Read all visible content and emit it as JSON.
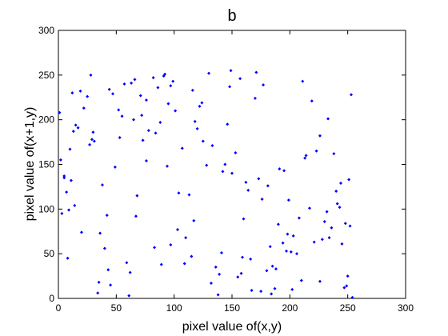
{
  "chart_data": {
    "type": "scatter",
    "title": "b",
    "xlabel": "pixel value of(x,y)",
    "ylabel": "pixel value of(x+1,y)",
    "xlim": [
      0,
      300
    ],
    "ylim": [
      0,
      300
    ],
    "xticks": [
      0,
      50,
      100,
      150,
      200,
      250,
      300
    ],
    "yticks": [
      0,
      50,
      100,
      150,
      200,
      250,
      300
    ],
    "color": "#0000ff",
    "x": [
      12,
      45,
      78,
      103,
      150,
      201,
      233,
      9,
      66,
      188,
      240,
      31,
      97,
      122,
      175,
      214,
      3,
      57,
      139,
      251,
      84,
      166,
      28,
      199,
      110,
      72,
      226,
      144,
      19,
      252,
      61,
      133,
      181,
      40,
      95,
      208,
      157,
      5,
      247,
      118,
      36,
      170,
      89,
      223,
      14,
      130,
      62,
      195,
      245,
      101,
      53,
      184,
      7,
      148,
      230,
      76,
      115,
      25,
      162,
      210,
      42,
      91,
      238,
      136,
      17,
      203,
      68,
      177,
      254,
      125,
      83,
      1,
      190,
      49,
      155,
      219,
      107,
      34,
      243,
      171,
      59,
      146,
      11,
      228,
      99,
      187,
      73,
      22,
      160,
      206,
      128,
      250,
      44,
      113,
      194,
      65,
      142,
      236,
      30,
      180,
      92,
      217,
      8,
      153,
      71,
      249,
      120,
      38,
      198,
      86,
      167,
      2,
      232,
      55,
      141,
      211,
      104,
      27,
      185,
      76,
      248,
      132,
      47,
      173,
      15,
      221,
      94,
      158,
      63,
      241,
      10,
      197,
      117,
      82,
      164,
      35,
      226,
      109,
      52,
      191,
      138,
      253,
      20,
      176,
      88,
      213,
      43,
      149,
      5,
      234,
      124,
      67,
      202,
      29,
      159,
      97,
      244,
      13,
      183,
      116
    ],
    "values": [
      230,
      15,
      188,
      77,
      140,
      52,
      201,
      99,
      245,
      33,
      120,
      176,
      60,
      215,
      8,
      160,
      95,
      240,
      27,
      133,
      185,
      44,
      250,
      110,
      68,
      205,
      19,
      150,
      232,
      81,
      3,
      171,
      126,
      56,
      218,
      90,
      246,
      137,
      12,
      198,
      73,
      224,
      38,
      165,
      104,
      252,
      29,
      143,
      61,
      210,
      180,
      5,
      119,
      237,
      86,
      154,
      47,
      226,
      130,
      20,
      93,
      249,
      162,
      35,
      191,
      70,
      115,
      239,
      1,
      176,
      57,
      208,
      83,
      147,
      24,
      221,
      168,
      6,
      102,
      253,
      40,
      195,
      132,
      66,
      243,
      11,
      177,
      213,
      89,
      50,
      149,
      25,
      234,
      116,
      62,
      200,
      142,
      79,
      186,
      31,
      251,
      101,
      45,
      163,
      227,
      14,
      190,
      127,
      72,
      236,
      9,
      155,
      97,
      204,
      51,
      243,
      118,
      172,
      36,
      222,
      84,
      17,
      229,
      134,
      194,
      63,
      148,
      28,
      241,
      106,
      167,
      53,
      87,
      247,
      121,
      18,
      182,
      39,
      211,
      145,
      4,
      228,
      74,
      111,
      197,
      157,
      32,
      255,
      135,
      68,
      219,
      92,
      10,
      178,
      46,
      238,
      129,
      187,
      58,
      233
    ]
  }
}
